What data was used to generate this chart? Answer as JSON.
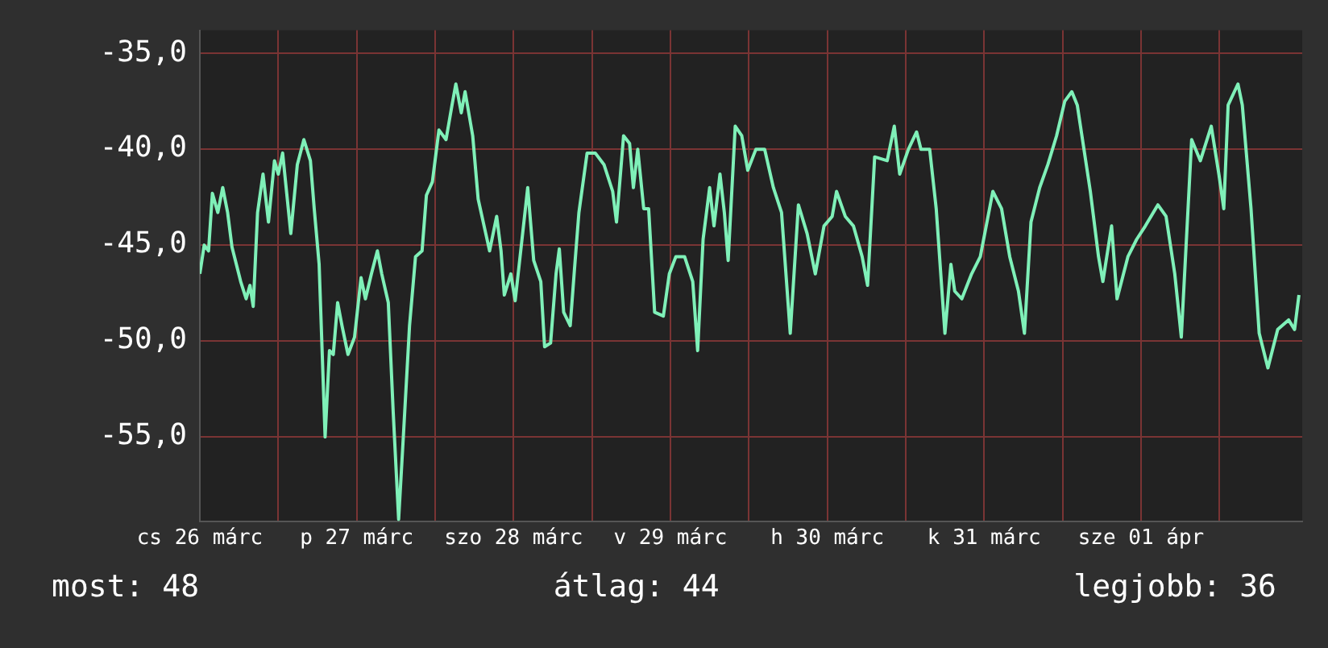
{
  "chart_data": {
    "type": "line",
    "x": [
      "--03-26T12:00",
      "--03-26T12:40",
      "--03-26T13:20",
      "--03-26T13:55",
      "--03-26T14:45",
      "--03-26T15:30",
      "--03-26T16:15",
      "--03-26T16:55",
      "--03-26T18:15",
      "--03-26T19:05",
      "--03-26T19:40",
      "--03-26T20:10",
      "--03-26T20:50",
      "--03-26T21:40",
      "--03-26T22:30",
      "--03-26T23:25",
      "--03-27T00:00",
      "--03-27T00:40",
      "--03-27T01:55",
      "--03-27T02:55",
      "--03-27T03:55",
      "--03-27T04:55",
      "--03-27T05:30",
      "--03-27T06:15",
      "--03-27T07:10",
      "--03-27T07:50",
      "--03-27T08:25",
      "--03-27T09:05",
      "--03-27T09:45",
      "--03-27T10:40",
      "--03-27T11:40",
      "--03-27T12:40",
      "--03-27T13:20",
      "--03-27T14:15",
      "--03-27T15:10",
      "--03-27T15:50",
      "--03-27T16:50",
      "--03-27T17:35",
      "--03-27T18:25",
      "--03-27T19:10",
      "--03-27T20:05",
      "--03-27T21:00",
      "--03-27T22:00",
      "--03-27T22:40",
      "--03-27T23:35",
      "--03-28T00:35",
      "--03-28T01:40",
      "--03-28T02:35",
      "--03-28T03:10",
      "--03-28T04:00",
      "--03-28T04:35",
      "--03-28T05:45",
      "--03-28T06:35",
      "--03-28T07:45",
      "--03-28T08:20",
      "--03-28T09:25",
      "--03-28T10:05",
      "--03-28T10:35",
      "--03-28T11:35",
      "--03-28T12:15",
      "--03-28T13:35",
      "--03-28T14:10",
      "--03-28T15:05",
      "--03-28T16:10",
      "--03-28T16:45",
      "--03-28T17:40",
      "--03-28T18:30",
      "--03-28T19:00",
      "--03-28T19:40",
      "--03-28T20:40",
      "--03-28T21:20",
      "--03-28T22:00",
      "--03-28T23:15",
      "--03-29T00:30",
      "--03-29T01:50",
      "--03-29T03:10",
      "--03-29T03:45",
      "--03-29T04:50",
      "--03-29T05:45",
      "--03-29T06:20",
      "--03-29T07:00",
      "--03-29T07:55",
      "--03-29T08:40",
      "--03-29T09:35",
      "--03-29T10:55",
      "--03-29T11:50",
      "--03-29T12:50",
      "--03-29T14:10",
      "--03-29T15:25",
      "--03-29T16:10",
      "--03-29T17:00",
      "--03-29T18:00",
      "--03-29T18:40",
      "--03-29T19:35",
      "--03-29T20:15",
      "--03-29T20:50",
      "--03-29T21:55",
      "--03-29T22:55",
      "--03-29T23:50",
      "--03-30T01:05",
      "--03-30T02:25",
      "--03-30T03:45",
      "--03-30T05:00",
      "--03-30T06:20",
      "--03-30T07:35",
      "--03-30T08:55",
      "--03-30T10:10",
      "--03-30T11:30",
      "--03-30T12:45",
      "--03-30T13:25",
      "--03-30T14:45",
      "--03-30T16:00",
      "--03-30T17:20",
      "--03-30T18:10",
      "--03-30T19:15",
      "--03-30T21:10",
      "--03-30T22:15",
      "--03-30T23:05",
      "--03-31T00:25",
      "--03-31T01:40",
      "--03-31T02:20",
      "--03-31T03:40",
      "--03-31T04:40",
      "--03-31T06:00",
      "--03-31T06:55",
      "--03-31T07:30",
      "--03-31T08:35",
      "--03-31T10:05",
      "--03-31T11:25",
      "--03-31T13:20",
      "--03-31T14:40",
      "--03-31T15:55",
      "--03-31T17:15",
      "--03-31T18:10",
      "--03-31T19:10",
      "--03-31T20:30",
      "--03-31T21:45",
      "--03-31T23:05",
      "--04-01T00:20",
      "--04-01T01:25",
      "--04-01T02:15",
      "--04-01T04:15",
      "--04-01T05:30",
      "--04-01T06:10",
      "--04-01T07:30",
      "--04-01T08:20",
      "--04-01T10:00",
      "--04-01T11:20",
      "--04-01T12:40",
      "--04-01T14:35",
      "--04-01T15:50",
      "--04-01T17:10",
      "--04-01T18:10",
      "--04-01T19:45",
      "--04-01T21:05",
      "--04-01T22:45",
      "--04-01T23:55",
      "--04-02T00:40",
      "--04-02T01:20",
      "--04-02T02:50",
      "--04-02T03:30",
      "--04-02T04:50",
      "--04-02T06:05",
      "--04-02T07:25",
      "--04-02T08:55",
      "--04-02T10:35",
      "--04-02T11:30",
      "--04-02T12:10"
    ],
    "series": [
      {
        "color": "#7ff0b8",
        "values": [
          -46.5,
          -45.0,
          -45.3,
          -42.3,
          -43.3,
          -42.0,
          -43.3,
          -45.1,
          -46.9,
          -47.8,
          -47.1,
          -48.2,
          -43.3,
          -41.3,
          -43.8,
          -40.6,
          -41.3,
          -40.2,
          -44.4,
          -40.8,
          -39.5,
          -40.6,
          -43.1,
          -46.0,
          -55.0,
          -50.5,
          -50.7,
          -48.0,
          -49.2,
          -50.7,
          -49.8,
          -46.7,
          -47.8,
          -46.5,
          -45.3,
          -46.5,
          -48.0,
          -53.7,
          -59.3,
          -54.8,
          -49.2,
          -45.6,
          -45.3,
          -42.4,
          -41.7,
          -39.0,
          -39.5,
          -37.7,
          -36.6,
          -38.1,
          -37.0,
          -39.3,
          -42.6,
          -44.4,
          -45.3,
          -43.5,
          -45.3,
          -47.6,
          -46.5,
          -47.9,
          -43.8,
          -42.0,
          -45.8,
          -46.9,
          -50.3,
          -50.1,
          -46.5,
          -45.2,
          -48.5,
          -49.2,
          -46.2,
          -43.3,
          -40.2,
          -40.2,
          -40.8,
          -42.2,
          -43.8,
          -39.3,
          -39.7,
          -42.0,
          -40.0,
          -43.1,
          -43.1,
          -48.5,
          -48.7,
          -46.5,
          -45.6,
          -45.6,
          -46.9,
          -50.5,
          -44.7,
          -42.0,
          -44.0,
          -41.3,
          -43.3,
          -45.8,
          -38.8,
          -39.3,
          -41.1,
          -40.0,
          -40.0,
          -42.0,
          -43.3,
          -49.6,
          -42.9,
          -44.4,
          -46.5,
          -44.0,
          -43.5,
          -42.2,
          -43.5,
          -44.0,
          -45.6,
          -47.1,
          -40.4,
          -40.6,
          -38.8,
          -41.3,
          -40.0,
          -39.1,
          -40.0,
          -40.0,
          -43.1,
          -49.6,
          -46.0,
          -47.4,
          -47.8,
          -46.5,
          -45.6,
          -42.2,
          -43.1,
          -45.6,
          -47.4,
          -49.6,
          -43.8,
          -42.0,
          -40.8,
          -39.3,
          -37.5,
          -37.0,
          -37.7,
          -42.2,
          -45.6,
          -46.9,
          -44.0,
          -47.8,
          -45.6,
          -44.7,
          -44.0,
          -42.9,
          -43.5,
          -46.5,
          -49.8,
          -39.5,
          -40.6,
          -38.8,
          -41.3,
          -43.1,
          -37.7,
          -36.6,
          -37.7,
          -43.1,
          -49.6,
          -51.4,
          -49.4,
          -48.9,
          -49.4,
          -47.6
        ]
      }
    ],
    "xlim": [
      "--03-26T12:00",
      "--04-02T12:40"
    ],
    "xticks": [
      {
        "value": "--03-26T12:00",
        "label": "cs 26 márc"
      },
      {
        "value": "--03-27T00:00",
        "label": null
      },
      {
        "value": "--03-27T12:00",
        "label": "p 27 márc"
      },
      {
        "value": "--03-28T00:00",
        "label": null
      },
      {
        "value": "--03-28T12:00",
        "label": "szo 28 márc"
      },
      {
        "value": "--03-29T00:00",
        "label": null
      },
      {
        "value": "--03-29T12:00",
        "label": "v 29 márc"
      },
      {
        "value": "--03-30T00:00",
        "label": null
      },
      {
        "value": "--03-30T12:00",
        "label": "h 30 márc"
      },
      {
        "value": "--03-31T00:00",
        "label": null
      },
      {
        "value": "--03-31T12:00",
        "label": "k 31 márc"
      },
      {
        "value": "--04-01T00:00",
        "label": null
      },
      {
        "value": "--04-01T12:00",
        "label": "sze 01 ápr"
      },
      {
        "value": "--04-02T00:00",
        "label": null
      }
    ],
    "ylim": [
      -59.4,
      -33.8
    ],
    "yticks": [
      {
        "value": -55,
        "label": "-55,0"
      },
      {
        "value": -50,
        "label": "-50,0"
      },
      {
        "value": -45,
        "label": "-45,0"
      },
      {
        "value": -40,
        "label": "-40,0"
      },
      {
        "value": -35,
        "label": "-35,0"
      }
    ],
    "grid": true,
    "annotations": [
      "most: 48",
      "átlag: 44",
      "legjobb: 36"
    ]
  }
}
